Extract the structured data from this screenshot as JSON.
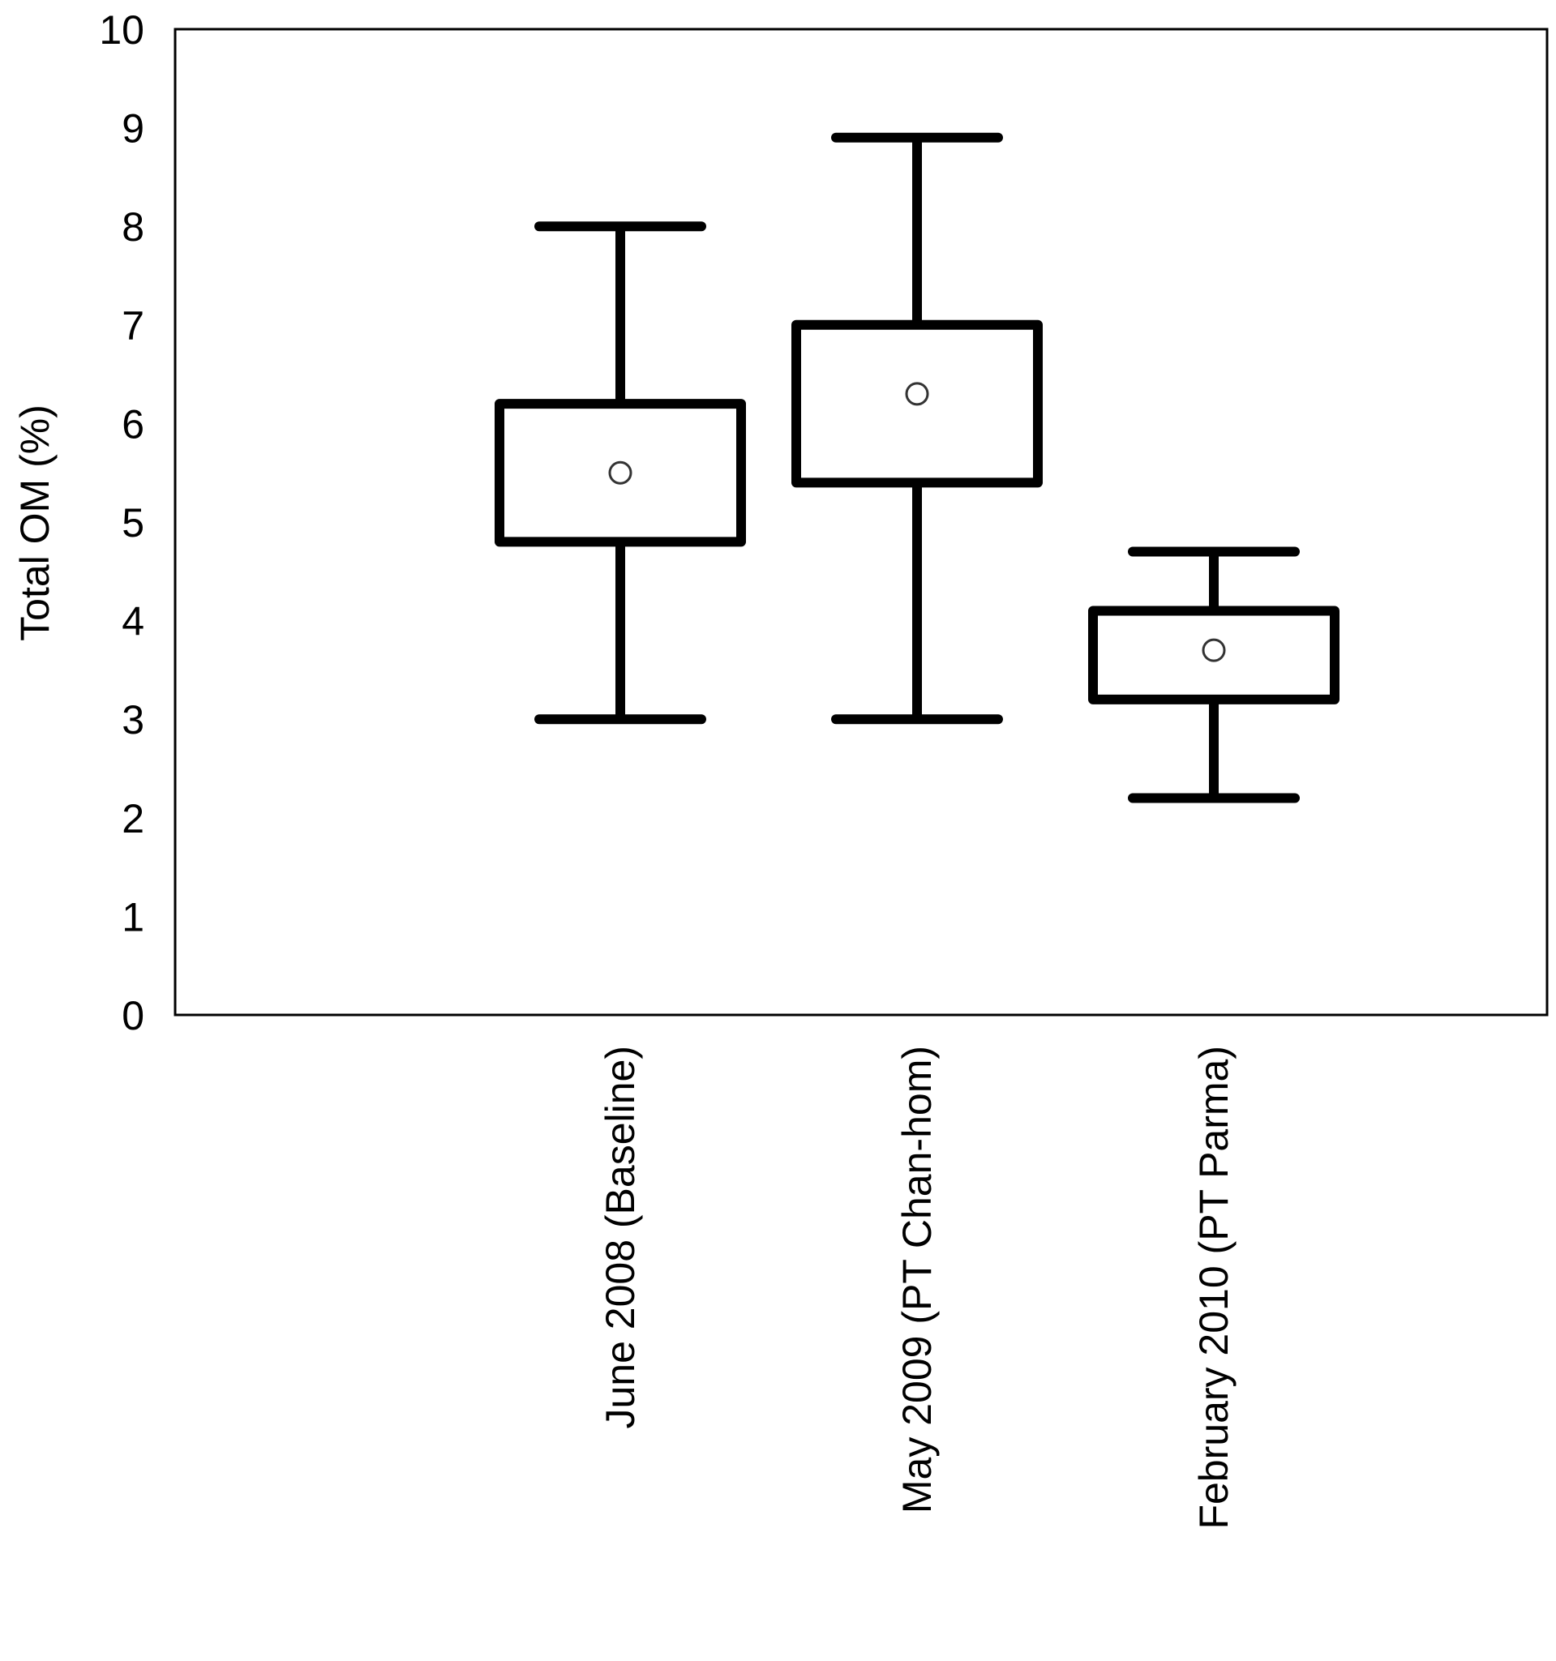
{
  "chart_data": {
    "type": "box",
    "title": "",
    "xlabel": "",
    "ylabel": "Total OM (%)",
    "ylim": [
      0,
      10
    ],
    "yticks": [
      0,
      1,
      2,
      3,
      4,
      5,
      6,
      7,
      8,
      9,
      10
    ],
    "grid": false,
    "legend": "none",
    "categories": [
      "June 2008 (Baseline)",
      "May 2009 (PT Chan-hom)",
      "February 2010 (PT Parma)"
    ],
    "boxes": [
      {
        "whisker_low": 3.0,
        "q1": 4.8,
        "mean": 5.5,
        "q3": 6.2,
        "whisker_high": 8.0
      },
      {
        "whisker_low": 3.0,
        "q1": 5.4,
        "mean": 6.3,
        "q3": 7.0,
        "whisker_high": 8.9
      },
      {
        "whisker_low": 2.2,
        "q1": 3.2,
        "mean": 3.7,
        "q3": 4.1,
        "whisker_high": 4.7
      }
    ],
    "colors": {
      "stroke": "#000000",
      "mean_marker_fill": "#ffffff",
      "background": "#ffffff"
    }
  }
}
